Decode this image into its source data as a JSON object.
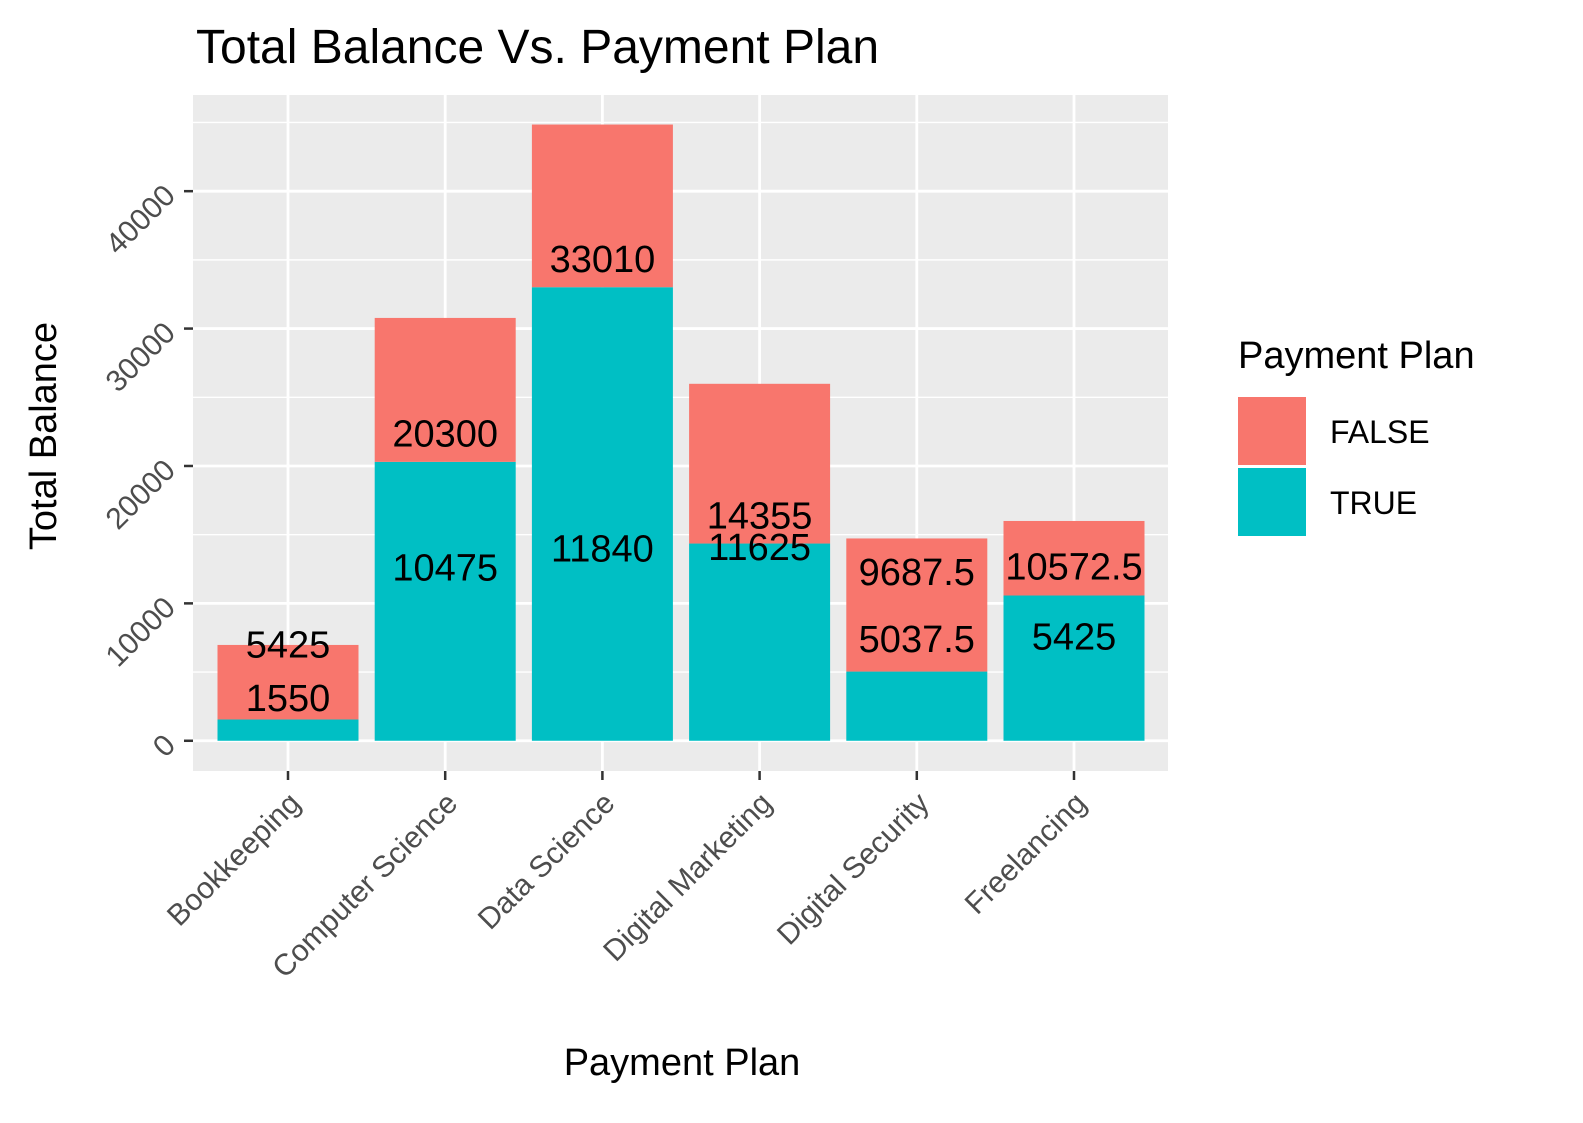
{
  "chart_data": {
    "type": "bar",
    "stacked": true,
    "title": "Total Balance Vs. Payment Plan",
    "xlabel": "Payment Plan",
    "ylabel": "Total Balance",
    "categories": [
      "Bookkeeping",
      "Computer Science",
      "Data Science",
      "Digital Marketing",
      "Digital Security",
      "Freelancing"
    ],
    "series": [
      {
        "name": "TRUE",
        "color": "#00BFC4",
        "values": [
          1550,
          20300,
          33010,
          14355,
          5037.5,
          10572.5
        ]
      },
      {
        "name": "FALSE",
        "color": "#F8766D",
        "values": [
          5425,
          10475,
          11840,
          11625,
          9687.5,
          5425
        ]
      }
    ],
    "data_labels": [
      [
        {
          "text": "5425",
          "y": 7000
        },
        {
          "text": "1550",
          "y": 3100
        }
      ],
      [
        {
          "text": "20300",
          "y": 22350
        },
        {
          "text": "10475",
          "y": 12600
        }
      ],
      [
        {
          "text": "33010",
          "y": 35050
        },
        {
          "text": "11840",
          "y": 14000
        }
      ],
      [
        {
          "text": "14355",
          "y": 16400
        },
        {
          "text": "11625",
          "y": 14100
        }
      ],
      [
        {
          "text": "9687.5",
          "y": 12300
        },
        {
          "text": "5037.5",
          "y": 7400
        }
      ],
      [
        {
          "text": "10572.5",
          "y": 12700
        },
        {
          "text": "5425",
          "y": 7600
        }
      ]
    ],
    "yticks": [
      0,
      10000,
      20000,
      30000,
      40000
    ],
    "ylim": [
      -2200,
      47000
    ],
    "grid": true,
    "panel_background": "#EBEBEB",
    "legend": {
      "title": "Payment Plan",
      "position": "right",
      "entries": [
        {
          "label": "FALSE",
          "color": "#F8766D"
        },
        {
          "label": "TRUE",
          "color": "#00BFC4"
        }
      ]
    }
  }
}
